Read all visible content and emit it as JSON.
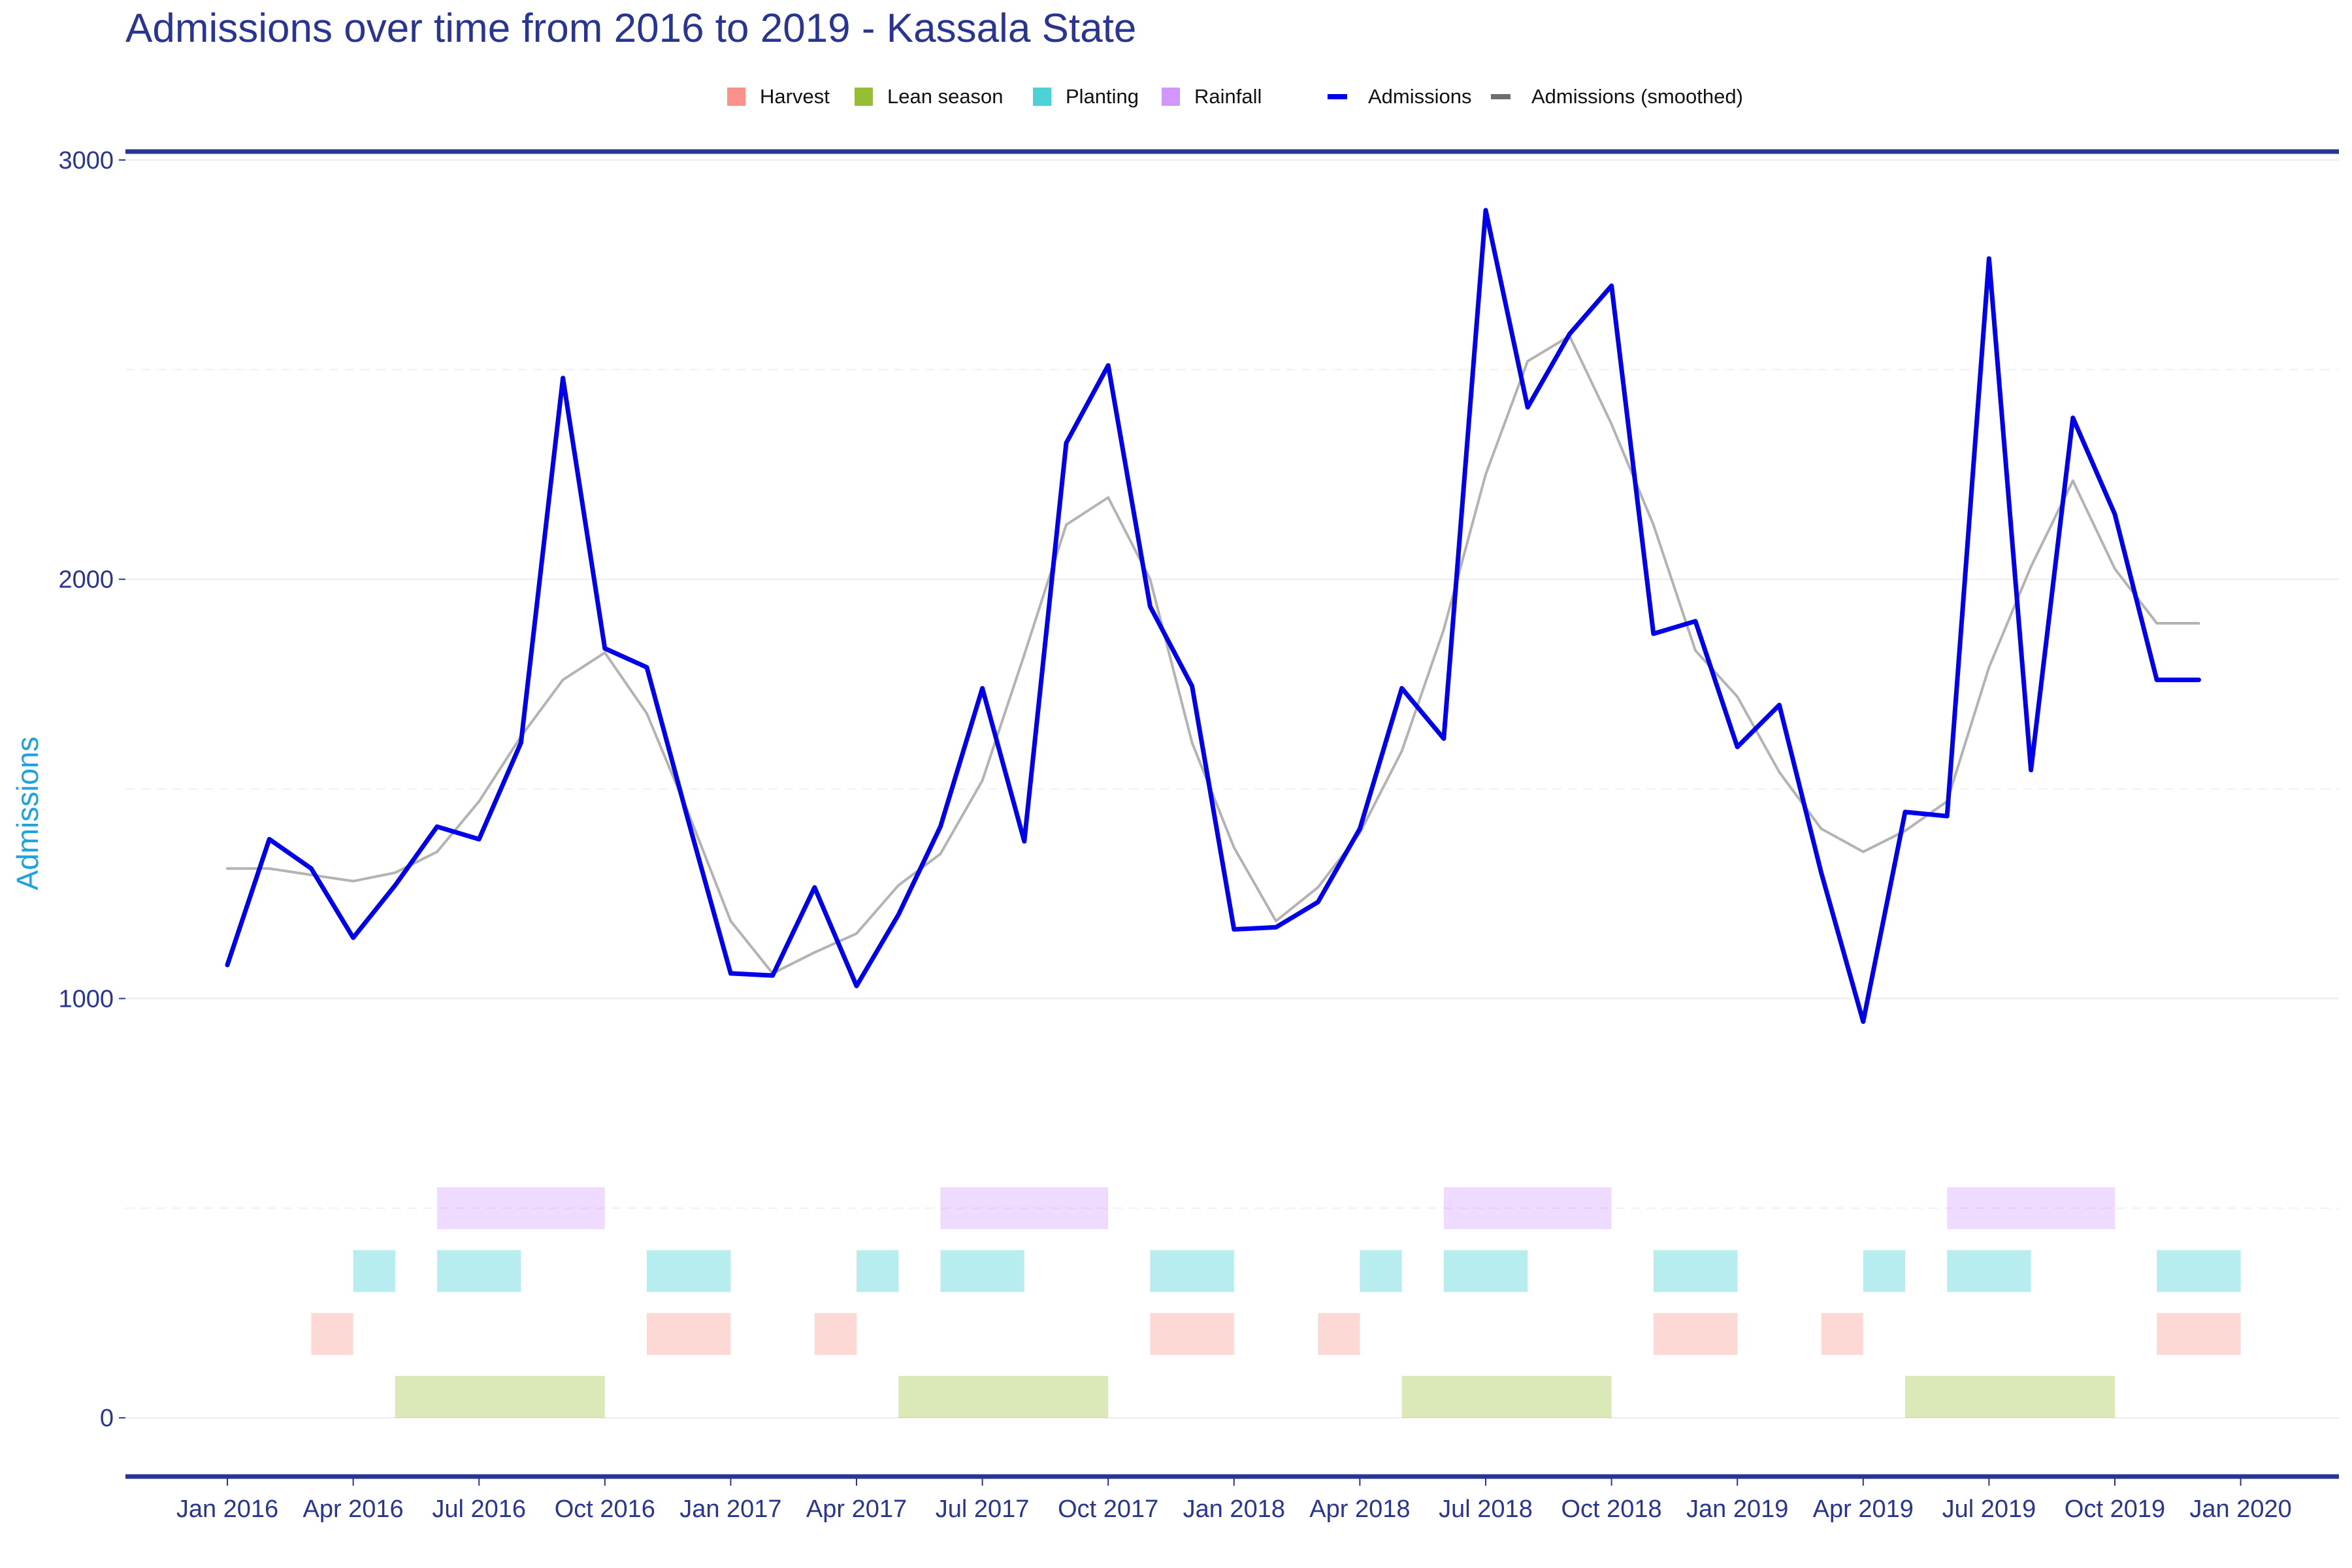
{
  "chart_data": {
    "type": "line",
    "title": "Admissions over time from 2016 to 2019 - Kassala State",
    "ylabel": "Admissions",
    "xlabel": "",
    "x_start": "2016-01",
    "x_end": "2020-01",
    "ylim": [
      -140,
      3020
    ],
    "y_ticks": [
      0,
      1000,
      2000,
      3000
    ],
    "y_tick_labels": [
      "0",
      "1000",
      "2000",
      "3000"
    ],
    "x_ticks": [
      "2016-01",
      "2016-04",
      "2016-07",
      "2016-10",
      "2017-01",
      "2017-04",
      "2017-07",
      "2017-10",
      "2018-01",
      "2018-04",
      "2018-07",
      "2018-10",
      "2019-01",
      "2019-04",
      "2019-07",
      "2019-10",
      "2020-01"
    ],
    "x_tick_labels": [
      "Jan 2016",
      "Apr 2016",
      "Jul 2016",
      "Oct 2016",
      "Jan 2017",
      "Apr 2017",
      "Jul 2017",
      "Oct 2017",
      "Jan 2018",
      "Apr 2018",
      "Jul 2018",
      "Oct 2018",
      "Jan 2019",
      "Apr 2019",
      "Jul 2019",
      "Oct 2019",
      "Jan 2020"
    ],
    "months": [
      "2016-01",
      "2016-02",
      "2016-03",
      "2016-04",
      "2016-05",
      "2016-06",
      "2016-07",
      "2016-08",
      "2016-09",
      "2016-10",
      "2016-11",
      "2016-12",
      "2017-01",
      "2017-02",
      "2017-03",
      "2017-04",
      "2017-05",
      "2017-06",
      "2017-07",
      "2017-08",
      "2017-09",
      "2017-10",
      "2017-11",
      "2017-12",
      "2018-01",
      "2018-02",
      "2018-03",
      "2018-04",
      "2018-05",
      "2018-06",
      "2018-07",
      "2018-08",
      "2018-09",
      "2018-10",
      "2018-11",
      "2018-12",
      "2019-01",
      "2019-02",
      "2019-03",
      "2019-04",
      "2019-05",
      "2019-06",
      "2019-07",
      "2019-08",
      "2019-09",
      "2019-10",
      "2019-11",
      "2019-12"
    ],
    "series": [
      {
        "name": "Admissions",
        "color": "#0000ee",
        "values": [
          1080,
          1380,
          1310,
          1145,
          1270,
          1410,
          1380,
          1610,
          2480,
          1835,
          1790,
          1420,
          1060,
          1055,
          1265,
          1030,
          1200,
          1410,
          1740,
          1375,
          2325,
          2510,
          1935,
          1745,
          1165,
          1170,
          1230,
          1405,
          1740,
          1620,
          2880,
          2410,
          2585,
          2700,
          1870,
          1900,
          1600,
          1700,
          1300,
          945,
          1445,
          1435,
          2765,
          1545,
          2385,
          2155,
          1760,
          1760
        ]
      },
      {
        "name": "Admissions (smoothed)",
        "color": "#b3b3b3",
        "values": [
          1310,
          1310,
          1295,
          1280,
          1300,
          1350,
          1470,
          1625,
          1760,
          1825,
          1680,
          1440,
          1185,
          1060,
          1110,
          1155,
          1270,
          1345,
          1520,
          1820,
          2130,
          2195,
          2000,
          1610,
          1360,
          1185,
          1265,
          1395,
          1590,
          1880,
          2250,
          2520,
          2580,
          2370,
          2130,
          1830,
          1720,
          1540,
          1405,
          1350,
          1400,
          1470,
          1790,
          2030,
          2235,
          2025,
          1895,
          1895
        ]
      }
    ],
    "seasons": [
      {
        "name": "Harvest",
        "color": "#f8766d",
        "level": 200,
        "periods": [
          [
            "2016-03",
            "2016-04"
          ],
          [
            "2016-11",
            "2017-01"
          ],
          [
            "2017-03",
            "2017-04"
          ],
          [
            "2017-11",
            "2018-01"
          ],
          [
            "2018-03",
            "2018-04"
          ],
          [
            "2018-11",
            "2019-01"
          ],
          [
            "2019-03",
            "2019-04"
          ],
          [
            "2019-11",
            "2020-01"
          ]
        ]
      },
      {
        "name": "Lean season",
        "color": "#7cae00",
        "level": 50,
        "periods": [
          [
            "2016-05",
            "2016-10"
          ],
          [
            "2017-05",
            "2017-10"
          ],
          [
            "2018-05",
            "2018-10"
          ],
          [
            "2019-05",
            "2019-10"
          ]
        ]
      },
      {
        "name": "Planting",
        "color": "#00bfc4",
        "level": 350,
        "periods": [
          [
            "2016-04",
            "2016-05"
          ],
          [
            "2016-06",
            "2016-08"
          ],
          [
            "2016-11",
            "2017-01"
          ],
          [
            "2017-04",
            "2017-05"
          ],
          [
            "2017-06",
            "2017-08"
          ],
          [
            "2017-11",
            "2018-01"
          ],
          [
            "2018-04",
            "2018-05"
          ],
          [
            "2018-06",
            "2018-08"
          ],
          [
            "2018-11",
            "2019-01"
          ],
          [
            "2019-04",
            "2019-05"
          ],
          [
            "2019-06",
            "2019-08"
          ],
          [
            "2019-11",
            "2020-01"
          ]
        ]
      },
      {
        "name": "Rainfall",
        "color": "#c77cff",
        "level": 500,
        "periods": [
          [
            "2016-06",
            "2016-10"
          ],
          [
            "2017-06",
            "2017-10"
          ],
          [
            "2018-06",
            "2018-10"
          ],
          [
            "2019-06",
            "2019-10"
          ]
        ]
      }
    ],
    "season_band_height": 100,
    "grid": true,
    "legend_position": "top"
  },
  "legend": {
    "harvest": "Harvest",
    "lean": "Lean season",
    "planting": "Planting",
    "rainfall": "Rainfall",
    "admissions": "Admissions",
    "smoothed": "Admissions (smoothed)"
  },
  "colors": {
    "title": "#283593",
    "axis": "#283593",
    "y_axis_title": "#1aa3e0",
    "grid": "#ebebeb"
  }
}
